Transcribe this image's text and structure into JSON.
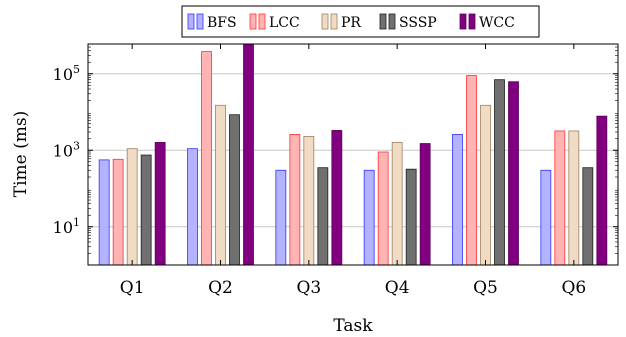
{
  "chart_data": {
    "type": "bar",
    "title": "",
    "xlabel": "Task",
    "ylabel": "Time (ms)",
    "yscale": "log",
    "ylim": [
      1,
      600000
    ],
    "yticks": [
      {
        "value": 10,
        "base": "10",
        "exp": "1"
      },
      {
        "value": 1000,
        "base": "10",
        "exp": "3"
      },
      {
        "value": 100000,
        "base": "10",
        "exp": "5"
      }
    ],
    "grid": true,
    "legend_position": "top",
    "categories": [
      "Q1",
      "Q2",
      "Q3",
      "Q4",
      "Q5",
      "Q6"
    ],
    "series": [
      {
        "name": "BFS",
        "fill": "#b3b3ff",
        "stroke": "#3333ff",
        "values": [
          560,
          1100,
          300,
          300,
          2600,
          300
        ]
      },
      {
        "name": "LCC",
        "fill": "#ffb3b3",
        "stroke": "#ff3333",
        "values": [
          580,
          380000,
          2600,
          900,
          90000,
          3200
        ]
      },
      {
        "name": "PR",
        "fill": "#f0dcc4",
        "stroke": "#a08060",
        "values": [
          1100,
          15000,
          2300,
          1600,
          15000,
          3200
        ]
      },
      {
        "name": "SSSP",
        "fill": "#707070",
        "stroke": "#202020",
        "values": [
          750,
          8500,
          350,
          320,
          70000,
          350
        ]
      },
      {
        "name": "WCC",
        "fill": "#800080",
        "stroke": "#600060",
        "values": [
          1600,
          600000,
          3300,
          1500,
          62000,
          7800
        ]
      }
    ]
  }
}
